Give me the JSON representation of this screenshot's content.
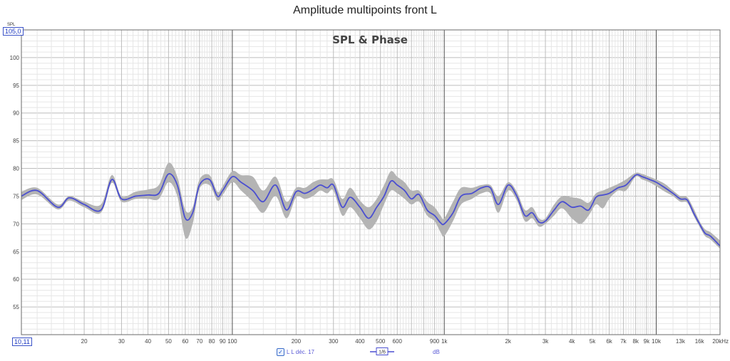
{
  "window": {
    "title": "Amplitude multipoints front L"
  },
  "graph": {
    "heading": "SPL & Phase",
    "y_axis_name": "SPL",
    "y_top_box": "105,0",
    "x_left_box": "10,11"
  },
  "legend": {
    "checked": true,
    "check_glyph": "✓",
    "measurement_label": "L L déc. 17",
    "smoothing_label": "1/6",
    "unit_label": "dB"
  },
  "colors": {
    "trace": "#4b4fd0",
    "band": "#b4b4b4",
    "grid_major": "#bdbdbd",
    "grid_minor": "#e6e6e6",
    "decade_line": "#505050"
  },
  "chart_data": {
    "type": "line",
    "title": "SPL & Phase",
    "ylabel": "SPL",
    "xscale": "log",
    "xlim": [
      10.11,
      20000
    ],
    "ylim": [
      50,
      105
    ],
    "yticks": [
      55,
      60,
      65,
      70,
      75,
      80,
      85,
      90,
      95,
      100
    ],
    "ytick_labels": [
      "55",
      "60",
      "65",
      "70",
      "75",
      "80",
      "85",
      "90",
      "95",
      "100"
    ],
    "xticks": [
      20,
      30,
      40,
      50,
      60,
      70,
      80,
      90,
      100,
      200,
      300,
      400,
      500,
      600,
      900,
      1000,
      2000,
      3000,
      4000,
      5000,
      6000,
      7000,
      8000,
      9000,
      10000,
      13000,
      16000,
      20000
    ],
    "xtick_labels": [
      "20",
      "30",
      "40",
      "50",
      "60",
      "70",
      "80",
      "90",
      "100",
      "200",
      "300",
      "400",
      "500",
      "600",
      "900",
      "1k",
      "2k",
      "3k",
      "4k",
      "5k",
      "6k",
      "7k",
      "8k",
      "9k",
      "10k",
      "13k",
      "16k",
      "20kHz"
    ],
    "grid": true,
    "series": [
      {
        "name": "L L déc. 17",
        "x": [
          10.11,
          12,
          15,
          17,
          20,
          24,
          27,
          30,
          35,
          40,
          45,
          50,
          55,
          60,
          65,
          70,
          78,
          85,
          90,
          100,
          110,
          125,
          140,
          160,
          180,
          200,
          220,
          240,
          260,
          280,
          300,
          330,
          360,
          400,
          440,
          480,
          520,
          560,
          600,
          650,
          700,
          760,
          830,
          900,
          960,
          1000,
          1100,
          1200,
          1350,
          1500,
          1650,
          1800,
          2000,
          2200,
          2400,
          2600,
          2800,
          3000,
          3300,
          3600,
          4000,
          4400,
          4800,
          5200,
          5600,
          6000,
          6600,
          7200,
          8000,
          8600,
          9300,
          10000,
          11000,
          12000,
          13000,
          14000,
          15000,
          16000,
          17000,
          18000,
          20000
        ],
        "y": [
          75.0,
          76.0,
          73.0,
          74.7,
          73.5,
          72.5,
          78.0,
          74.5,
          75.0,
          75.2,
          75.5,
          79.0,
          77.0,
          71.0,
          72.0,
          77.0,
          78.0,
          75.0,
          76.0,
          78.5,
          77.5,
          76.0,
          74.0,
          77.0,
          72.5,
          75.8,
          75.5,
          76.2,
          77.0,
          76.5,
          77.0,
          73.0,
          74.8,
          73.0,
          71.0,
          73.0,
          75.0,
          77.7,
          77.0,
          76.0,
          74.5,
          75.3,
          72.5,
          71.5,
          70.2,
          70.0,
          72.0,
          75.0,
          75.5,
          76.5,
          76.5,
          73.5,
          77.0,
          75.0,
          71.5,
          72.0,
          70.3,
          70.5,
          72.5,
          74.0,
          73.0,
          73.2,
          72.5,
          74.8,
          75.2,
          75.5,
          76.5,
          77.0,
          78.8,
          78.5,
          78.0,
          77.5,
          76.5,
          75.5,
          74.5,
          74.3,
          72.0,
          70.0,
          68.3,
          67.8,
          66.0
        ]
      },
      {
        "name": "",
        "band_x": [
          10.11,
          12,
          15,
          17,
          20,
          24,
          27,
          30,
          35,
          40,
          45,
          50,
          55,
          60,
          65,
          70,
          78,
          85,
          90,
          100,
          110,
          125,
          140,
          160,
          180,
          200,
          220,
          240,
          260,
          280,
          300,
          330,
          360,
          400,
          440,
          480,
          520,
          560,
          600,
          650,
          700,
          760,
          830,
          900,
          960,
          1000,
          1100,
          1200,
          1350,
          1500,
          1650,
          1800,
          2000,
          2200,
          2400,
          2600,
          2800,
          3000,
          3300,
          3600,
          4000,
          4400,
          4800,
          5200,
          5600,
          6000,
          6600,
          7200,
          8000,
          8600,
          9300,
          10000,
          11000,
          12000,
          13000,
          14000,
          15000,
          16000,
          17000,
          18000,
          20000
        ],
        "band_high": [
          75.8,
          76.5,
          73.5,
          75.0,
          74.0,
          73.5,
          78.8,
          75.0,
          75.8,
          76.2,
          77.0,
          81.0,
          78.5,
          72.5,
          73.0,
          78.0,
          78.8,
          75.8,
          76.8,
          79.5,
          78.8,
          78.5,
          76.0,
          78.5,
          74.0,
          76.5,
          76.5,
          77.5,
          78.0,
          78.0,
          78.0,
          74.5,
          76.5,
          74.2,
          73.0,
          74.5,
          77.0,
          79.5,
          78.5,
          77.5,
          76.0,
          76.0,
          74.0,
          73.0,
          71.5,
          71.0,
          74.0,
          76.5,
          76.5,
          77.0,
          77.0,
          75.0,
          77.5,
          75.8,
          72.5,
          73.0,
          71.0,
          71.0,
          73.5,
          75.0,
          74.8,
          74.5,
          73.8,
          75.5,
          76.0,
          76.5,
          77.2,
          78.0,
          79.2,
          79.0,
          78.5,
          78.0,
          77.2,
          76.0,
          75.0,
          74.8,
          72.8,
          70.5,
          69.0,
          68.5,
          67.0
        ],
        "band_low": [
          74.3,
          75.3,
          72.6,
          74.2,
          73.0,
          72.0,
          77.4,
          74.0,
          74.5,
          74.5,
          74.5,
          77.5,
          75.0,
          67.5,
          70.0,
          76.3,
          77.0,
          74.2,
          75.2,
          77.5,
          76.0,
          74.0,
          72.0,
          75.0,
          71.0,
          74.8,
          74.5,
          75.0,
          76.0,
          75.5,
          76.0,
          71.5,
          73.0,
          71.0,
          69.0,
          70.5,
          73.5,
          76.0,
          75.5,
          74.5,
          73.5,
          74.0,
          71.5,
          70.5,
          68.5,
          67.8,
          70.5,
          73.5,
          74.5,
          75.5,
          75.5,
          72.0,
          76.0,
          74.2,
          70.5,
          71.0,
          69.5,
          70.0,
          71.5,
          72.8,
          71.0,
          70.0,
          71.5,
          73.5,
          72.8,
          74.5,
          76.0,
          76.0,
          78.5,
          78.0,
          77.5,
          76.8,
          75.8,
          75.0,
          74.0,
          73.8,
          71.5,
          69.5,
          67.8,
          67.2,
          65.5
        ]
      }
    ]
  }
}
